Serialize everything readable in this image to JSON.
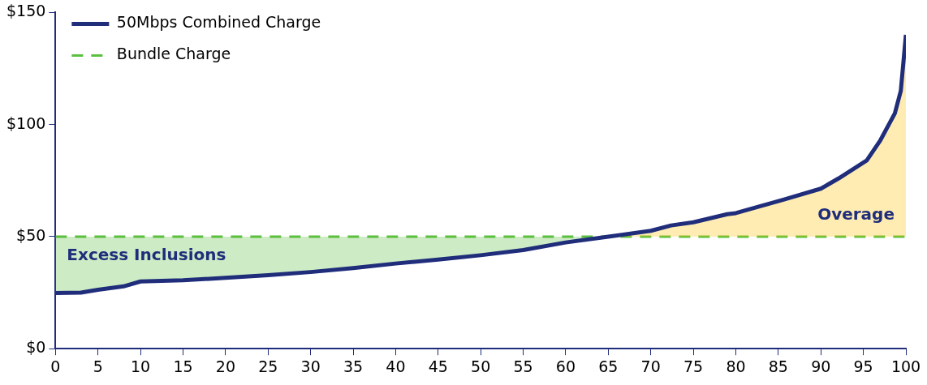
{
  "chart_data": {
    "type": "line",
    "xlim": [
      0,
      100
    ],
    "xticks": [
      0,
      5,
      10,
      15,
      20,
      25,
      30,
      35,
      40,
      45,
      50,
      55,
      60,
      65,
      70,
      75,
      80,
      85,
      90,
      95,
      100
    ],
    "ylim": [
      0,
      150
    ],
    "yticks": [
      {
        "value": 0,
        "label": "$0"
      },
      {
        "value": 50,
        "label": "$50"
      },
      {
        "value": 100,
        "label": "$100"
      },
      {
        "value": 150,
        "label": "$150"
      }
    ],
    "grid": false,
    "legend": "top left",
    "marker": "none",
    "series": [
      {
        "name": "50Mbps Combined Charge",
        "color": "#1f2d7b",
        "line_style": "solid",
        "x": [
          0,
          3,
          5,
          8,
          10,
          15,
          20,
          25,
          30,
          35,
          40,
          45,
          50,
          55,
          60,
          65,
          70,
          72.4,
          75,
          79,
          80,
          85.6,
          90,
          92.1,
          95.4,
          97,
          98.7,
          99.4,
          100
        ],
        "values": [
          24.8,
          25,
          26.3,
          27.8,
          30,
          30.5,
          31.6,
          32.8,
          34.2,
          36,
          38,
          39.8,
          41.7,
          44,
          47.4,
          50,
          52.6,
          55,
          56.4,
          60,
          60.5,
          66.5,
          71.4,
          76,
          84,
          93,
          105,
          115,
          140
        ]
      },
      {
        "name": "Bundle Charge",
        "color": "#5bbf3e",
        "line_style": "dashed",
        "x": [
          0,
          100
        ],
        "values": [
          50,
          50
        ]
      }
    ],
    "annotations": [
      "Excess Inclusions",
      "Overage"
    ]
  }
}
